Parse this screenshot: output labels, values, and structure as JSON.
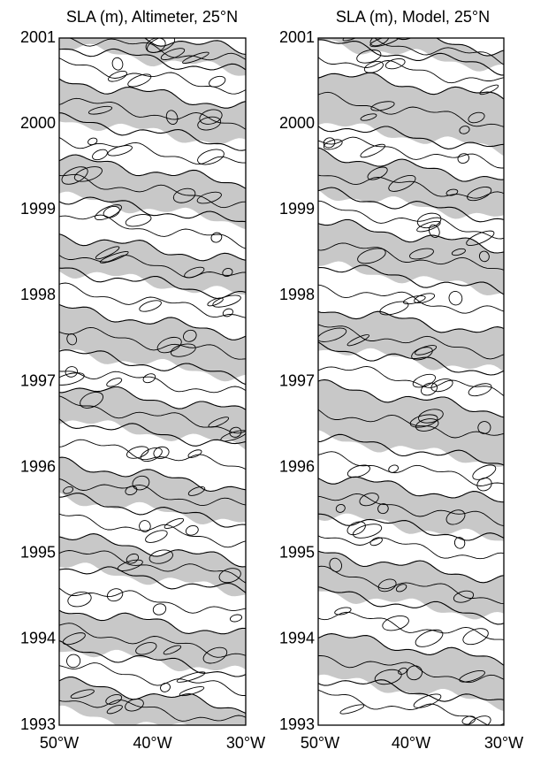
{
  "chart_data": [
    {
      "type": "heatmap",
      "title": "SLA (m), Altimeter, 25°N",
      "x_ticks": [
        "50°W",
        "40°W",
        "30°W"
      ],
      "xlim": [
        -50,
        -30
      ],
      "y_ticks": [
        "1993",
        "1994",
        "1995",
        "1996",
        "1997",
        "1998",
        "1999",
        "2000",
        "2001"
      ],
      "ylim": [
        1993,
        2001
      ],
      "shading": "negative anomalies shaded gray, positive white, black contour lines",
      "fill_color": "#c8c8c8",
      "bands": [
        {
          "start": 1993.0,
          "end": 1993.35,
          "sign": "neg"
        },
        {
          "start": 1993.35,
          "end": 1993.75,
          "sign": "pos"
        },
        {
          "start": 1993.75,
          "end": 1994.2,
          "sign": "neg"
        },
        {
          "start": 1994.2,
          "end": 1994.7,
          "sign": "pos"
        },
        {
          "start": 1994.7,
          "end": 1995.05,
          "sign": "neg"
        },
        {
          "start": 1995.05,
          "end": 1995.5,
          "sign": "pos"
        },
        {
          "start": 1995.5,
          "end": 1995.9,
          "sign": "neg"
        },
        {
          "start": 1995.9,
          "end": 1996.4,
          "sign": "pos"
        },
        {
          "start": 1996.4,
          "end": 1996.8,
          "sign": "neg"
        },
        {
          "start": 1996.8,
          "end": 1997.2,
          "sign": "pos"
        },
        {
          "start": 1997.2,
          "end": 1997.7,
          "sign": "neg"
        },
        {
          "start": 1997.7,
          "end": 1998.15,
          "sign": "pos"
        },
        {
          "start": 1998.15,
          "end": 1998.55,
          "sign": "neg"
        },
        {
          "start": 1998.55,
          "end": 1999.0,
          "sign": "pos"
        },
        {
          "start": 1999.0,
          "end": 1999.45,
          "sign": "neg"
        },
        {
          "start": 1999.45,
          "end": 1999.9,
          "sign": "pos"
        },
        {
          "start": 1999.9,
          "end": 2000.35,
          "sign": "neg"
        },
        {
          "start": 2000.35,
          "end": 2000.75,
          "sign": "pos"
        },
        {
          "start": 2000.75,
          "end": 2001.0,
          "sign": "neg"
        }
      ]
    },
    {
      "type": "heatmap",
      "title": "SLA (m), Model, 25°N",
      "x_ticks": [
        "50°W",
        "40°W",
        "30°W"
      ],
      "xlim": [
        -50,
        -30
      ],
      "y_ticks": [
        "1993",
        "1994",
        "1995",
        "1996",
        "1997",
        "1998",
        "1999",
        "2000",
        "2001"
      ],
      "ylim": [
        1993,
        2001
      ],
      "shading": "negative anomalies shaded gray, positive white, black contour lines",
      "fill_color": "#c8c8c8",
      "bands": [
        {
          "start": 1993.0,
          "end": 1993.4,
          "sign": "pos"
        },
        {
          "start": 1993.4,
          "end": 1993.9,
          "sign": "neg"
        },
        {
          "start": 1993.9,
          "end": 1994.4,
          "sign": "pos"
        },
        {
          "start": 1994.4,
          "end": 1994.85,
          "sign": "neg"
        },
        {
          "start": 1994.85,
          "end": 1995.3,
          "sign": "pos"
        },
        {
          "start": 1995.3,
          "end": 1995.75,
          "sign": "neg"
        },
        {
          "start": 1995.75,
          "end": 1996.2,
          "sign": "pos"
        },
        {
          "start": 1996.2,
          "end": 1996.8,
          "sign": "neg"
        },
        {
          "start": 1996.8,
          "end": 1997.25,
          "sign": "pos"
        },
        {
          "start": 1997.25,
          "end": 1997.7,
          "sign": "neg"
        },
        {
          "start": 1997.7,
          "end": 1998.2,
          "sign": "pos"
        },
        {
          "start": 1998.2,
          "end": 1998.7,
          "sign": "neg"
        },
        {
          "start": 1998.7,
          "end": 1999.05,
          "sign": "pos"
        },
        {
          "start": 1999.05,
          "end": 1999.5,
          "sign": "neg"
        },
        {
          "start": 1999.5,
          "end": 1999.85,
          "sign": "pos"
        },
        {
          "start": 1999.85,
          "end": 2000.45,
          "sign": "neg"
        },
        {
          "start": 2000.45,
          "end": 2000.8,
          "sign": "pos"
        },
        {
          "start": 2000.8,
          "end": 2001.0,
          "sign": "neg"
        }
      ]
    }
  ]
}
